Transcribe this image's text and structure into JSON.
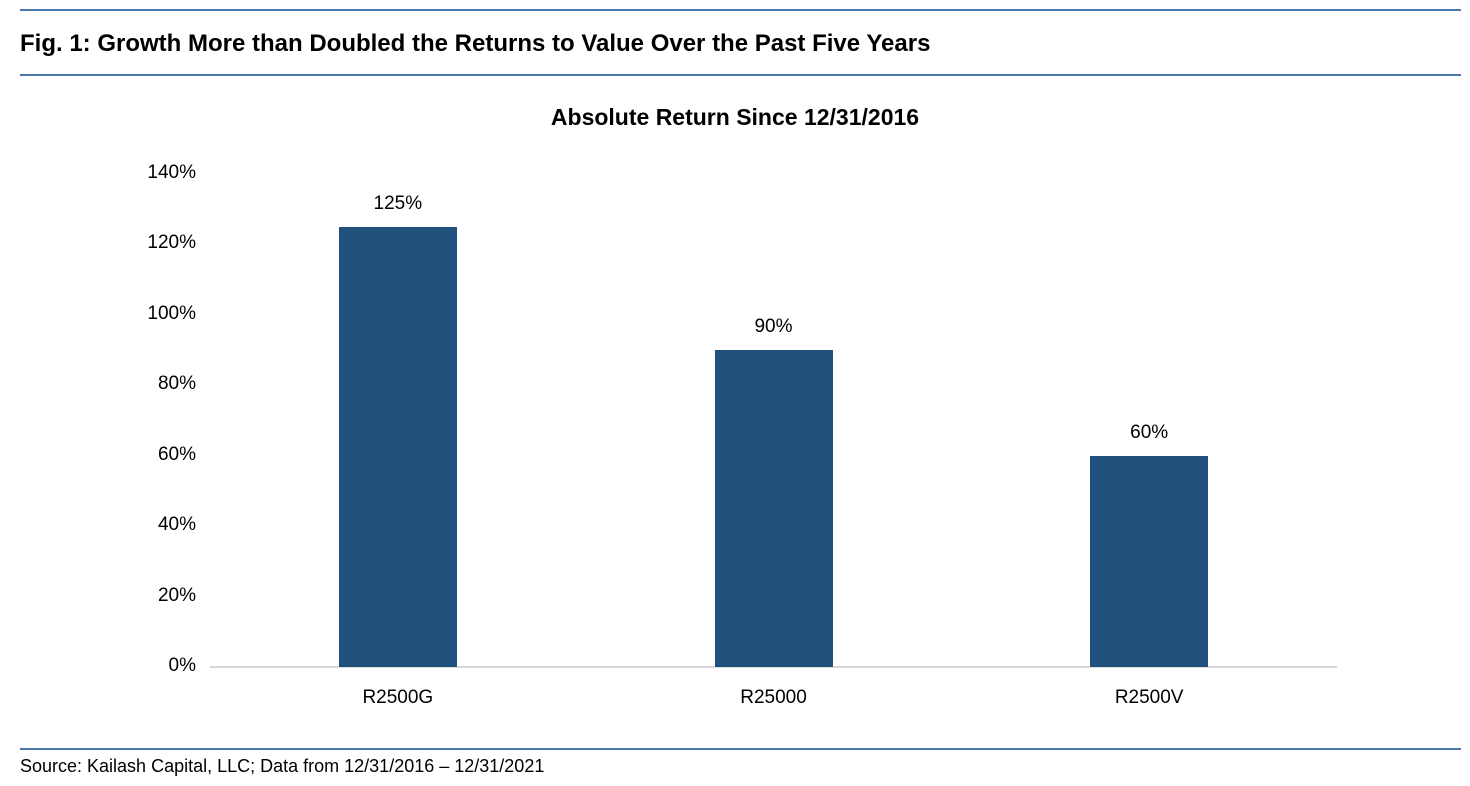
{
  "figure": {
    "title": "Fig. 1: Growth More than Doubled the Returns to Value Over the Past Five Years",
    "source": "Source: Kailash Capital, LLC; Data from 12/31/2016 – 12/31/2021"
  },
  "chart_data": {
    "type": "bar",
    "title": "Absolute Return Since 12/31/2016",
    "categories": [
      "R2500G",
      "R25000",
      "R2500V"
    ],
    "values": [
      125,
      90,
      60
    ],
    "data_labels": [
      "125%",
      "90%",
      "60%"
    ],
    "y_tick_values": [
      0,
      20,
      40,
      60,
      80,
      100,
      120,
      140
    ],
    "y_tick_labels": [
      "0%",
      "20%",
      "40%",
      "60%",
      "80%",
      "100%",
      "120%",
      "140%"
    ],
    "ylim": [
      0,
      140
    ],
    "xlabel": "",
    "ylabel": "",
    "grid": false,
    "legend": false,
    "colors": {
      "bar": "#20517D",
      "rule": "#4A7AAD",
      "axis_line": "#D9D9D9",
      "text": "#000000"
    }
  }
}
